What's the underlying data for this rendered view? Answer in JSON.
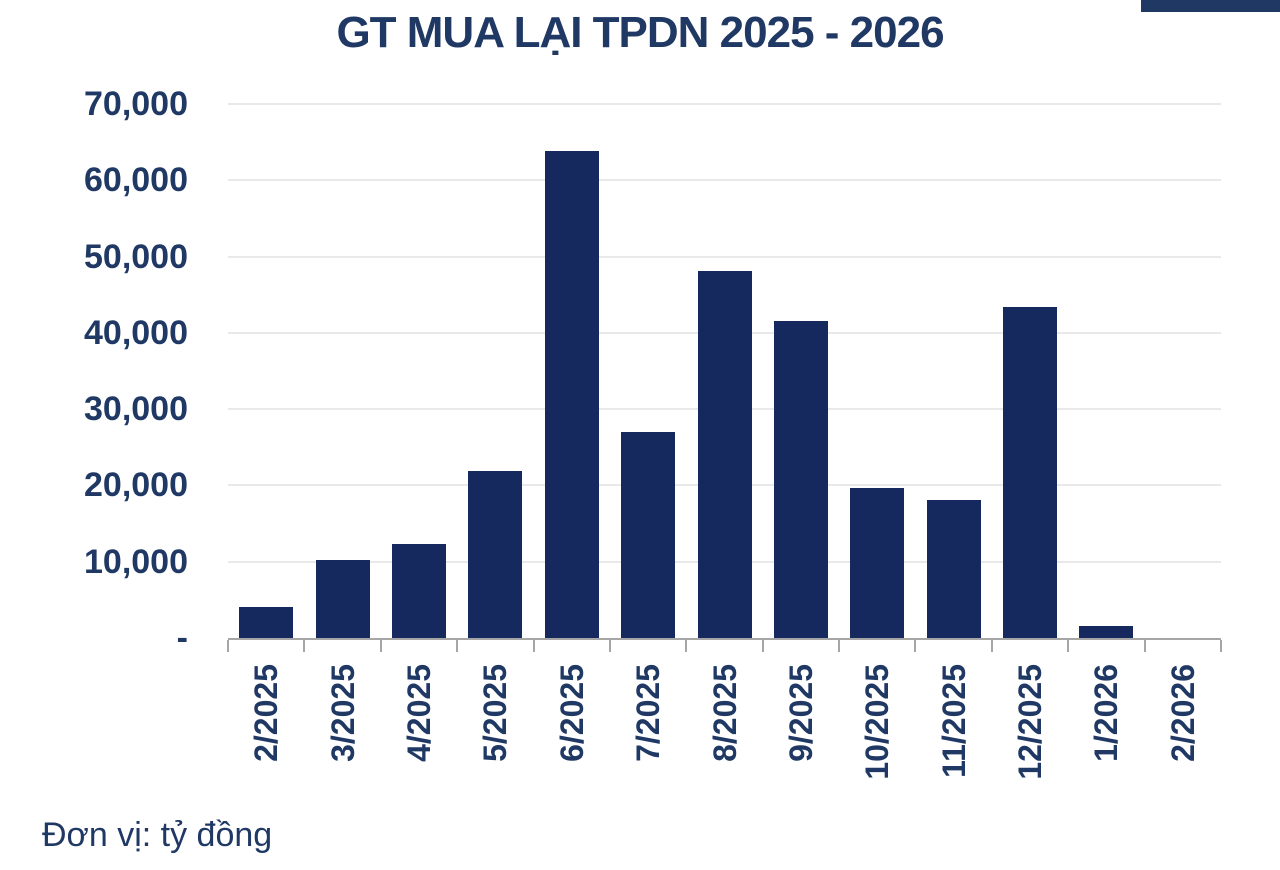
{
  "page": {
    "title": "GT MUA LẠI TPDN 2025 - 2026",
    "unit_note": "Đơn vị: tỷ đồng"
  },
  "colors": {
    "bar": "#15295e",
    "text": "#1f3864",
    "gridline": "#e9e9e9",
    "axis": "#a6a6a6",
    "corner_strip": "#1f3864",
    "background": "#ffffff"
  },
  "chart_data": {
    "type": "bar",
    "title": "GT MUA LẠI TPDN 2025 - 2026",
    "unit_label": "Đơn vị: tỷ đồng",
    "categories": [
      "2/2025",
      "3/2025",
      "4/2025",
      "5/2025",
      "6/2025",
      "7/2025",
      "8/2025",
      "9/2025",
      "10/2025",
      "11/2025",
      "12/2025",
      "1/2026",
      "2/2026"
    ],
    "values": [
      4000,
      10200,
      12300,
      21900,
      63900,
      27000,
      48100,
      41500,
      19600,
      18100,
      43400,
      1600,
      0
    ],
    "y_tick_labels": [
      "70,000",
      "60,000",
      "50,000",
      "40,000",
      "30,000",
      "20,000",
      "10,000",
      "-"
    ],
    "ylim": [
      0,
      70000
    ],
    "xlabel": "",
    "ylabel": "",
    "grid": true,
    "legend": false,
    "x_label_rotation": 90,
    "bar_color": "#15295e"
  }
}
